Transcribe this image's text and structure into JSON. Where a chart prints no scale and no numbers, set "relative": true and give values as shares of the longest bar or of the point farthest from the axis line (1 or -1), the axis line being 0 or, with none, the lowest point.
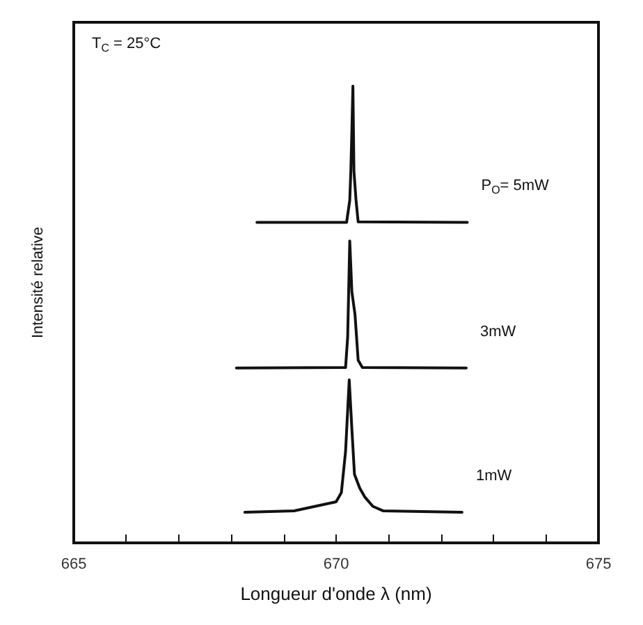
{
  "chart_data": {
    "type": "line",
    "relative": true,
    "xlabel": "Longueur d'onde λ (nm)",
    "ylabel": "Intensité relative",
    "annotations": [
      "T$_{C}$ = 25°C"
    ],
    "xlim": [
      665,
      675
    ],
    "xticks": [
      665,
      {
        "value": 666,
        "label": null
      },
      {
        "value": 667,
        "label": null
      },
      {
        "value": 668,
        "label": null
      },
      {
        "value": 669,
        "label": null
      },
      670,
      {
        "value": 671,
        "label": null
      },
      {
        "value": 672,
        "label": null
      },
      {
        "value": 673,
        "label": null
      },
      {
        "value": 674,
        "label": null
      },
      675
    ],
    "tick_labels": "x",
    "grid": false,
    "legend": false,
    "marker": "none",
    "line_style": "solid",
    "series": [
      {
        "name": "P$_{O}$= 5mW",
        "color": "#111111",
        "x": [
          668.49,
          670.2,
          670.26,
          670.28,
          670.3,
          670.32,
          670.34,
          670.38,
          670.42,
          672.5
        ],
        "values": [
          0.702,
          0.702,
          0.75,
          0.813,
          0.9,
          1.0,
          0.813,
          0.75,
          0.703,
          0.702
        ]
      },
      {
        "name": "3mW",
        "color": "#111111",
        "x": [
          668.1,
          670.18,
          670.22,
          670.26,
          670.3,
          670.36,
          670.42,
          670.5,
          672.48
        ],
        "values": [
          0.383,
          0.384,
          0.45,
          0.661,
          0.55,
          0.5,
          0.4,
          0.384,
          0.383
        ]
      },
      {
        "name": "1mW",
        "color": "#111111",
        "x": [
          668.26,
          669.2,
          669.4,
          669.6,
          669.8,
          670.0,
          670.1,
          670.18,
          670.25,
          670.3,
          670.35,
          670.45,
          670.55,
          670.7,
          670.9,
          672.4
        ],
        "values": [
          0.067,
          0.07,
          0.075,
          0.08,
          0.085,
          0.09,
          0.11,
          0.2,
          0.357,
          0.25,
          0.15,
          0.12,
          0.1,
          0.08,
          0.07,
          0.067
        ]
      }
    ]
  }
}
